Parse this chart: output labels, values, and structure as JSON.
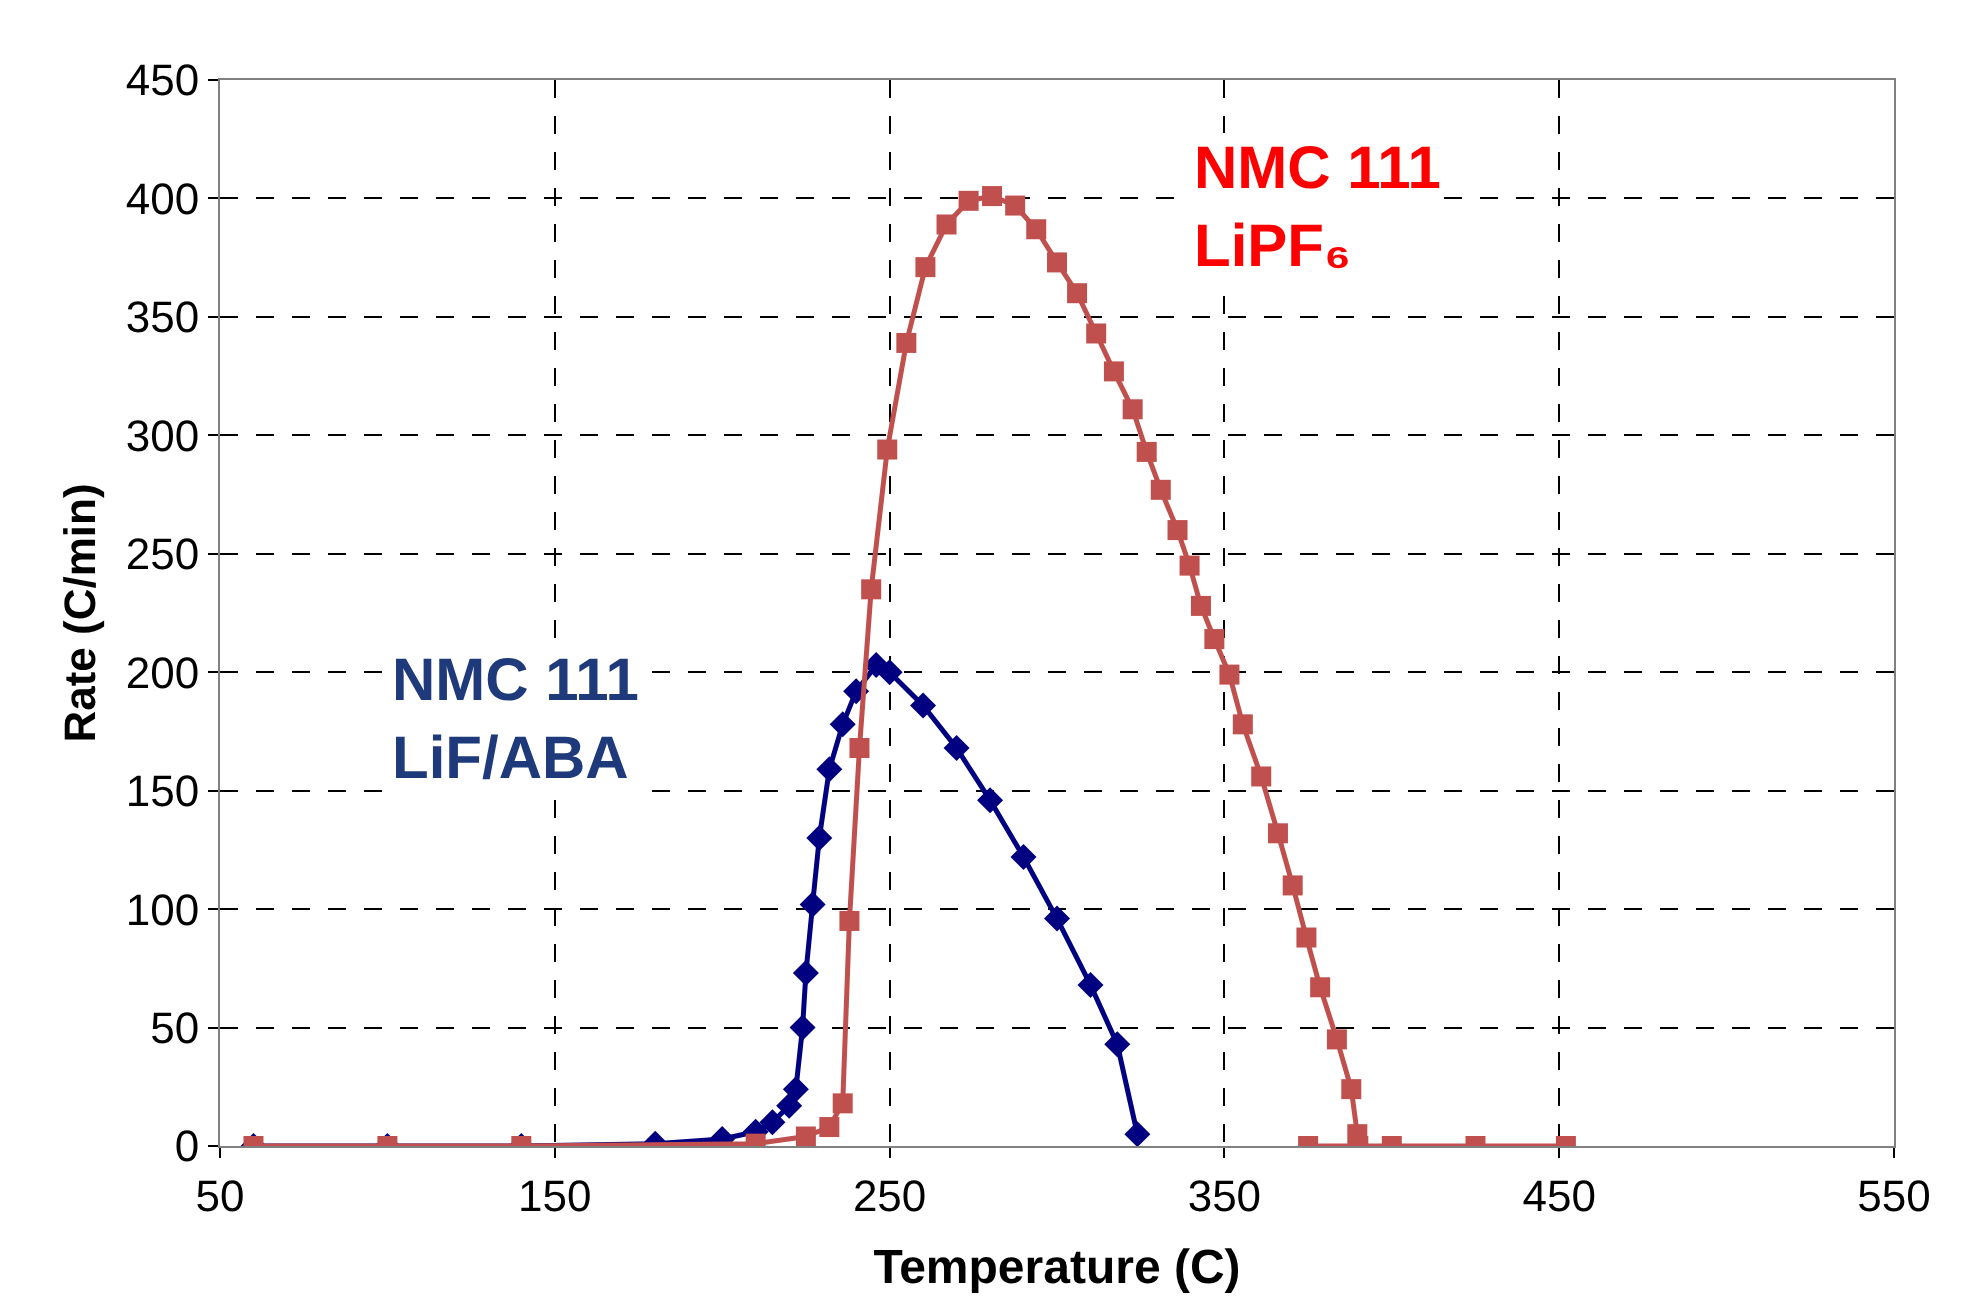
{
  "chart_data": {
    "type": "line",
    "xlabel": "Temperature (C)",
    "ylabel": "Rate (C/min)",
    "xlim": [
      50,
      550
    ],
    "xticks": [
      50,
      150,
      250,
      350,
      450,
      550
    ],
    "ylim": [
      0,
      450
    ],
    "yticks": [
      0,
      50,
      100,
      150,
      200,
      250,
      300,
      350,
      400,
      450
    ],
    "grid": true,
    "legend": false,
    "line_style": "solid",
    "series": [
      {
        "name": "NMC 111\nLiF/ABA",
        "color": "#000080",
        "marker": "diamond",
        "x": [
          60,
          100,
          140,
          180,
          200,
          210,
          215,
          220,
          222,
          224,
          225,
          227,
          229,
          232,
          236,
          240,
          246,
          250,
          260,
          270,
          280,
          290,
          300,
          310,
          318,
          324
        ],
        "values": [
          0,
          0,
          0,
          1,
          3,
          6,
          10,
          17,
          24,
          50,
          73,
          102,
          130,
          159,
          178,
          192,
          203,
          200,
          186,
          168,
          146,
          122,
          96,
          68,
          43,
          5
        ]
      },
      {
        "name": "NMC 111\nLiPF₆",
        "color": "#c0504d",
        "marker": "square",
        "x": [
          60,
          100,
          140,
          210,
          225,
          232,
          236,
          238,
          241,
          244.5,
          249.3,
          255,
          260.7,
          267,
          273.6,
          280.6,
          287.5,
          293.8,
          300,
          306,
          311.7,
          317,
          322.6,
          326.8,
          331,
          336,
          339.6,
          343,
          347,
          351.5,
          355.5,
          361,
          366,
          370.4,
          374.5,
          378.6,
          383.6,
          387.9,
          389.7,
          390,
          375,
          400,
          425,
          452
        ],
        "values": [
          0,
          0,
          0,
          1,
          4,
          8,
          18,
          95,
          168,
          235,
          294,
          339,
          371,
          389,
          399,
          401,
          397,
          387,
          373,
          360,
          343,
          327,
          311,
          293,
          277,
          260,
          245,
          228,
          214,
          199,
          178,
          156,
          132,
          110,
          88,
          67,
          45,
          24,
          5,
          0,
          0,
          0,
          0,
          0
        ]
      }
    ]
  }
}
